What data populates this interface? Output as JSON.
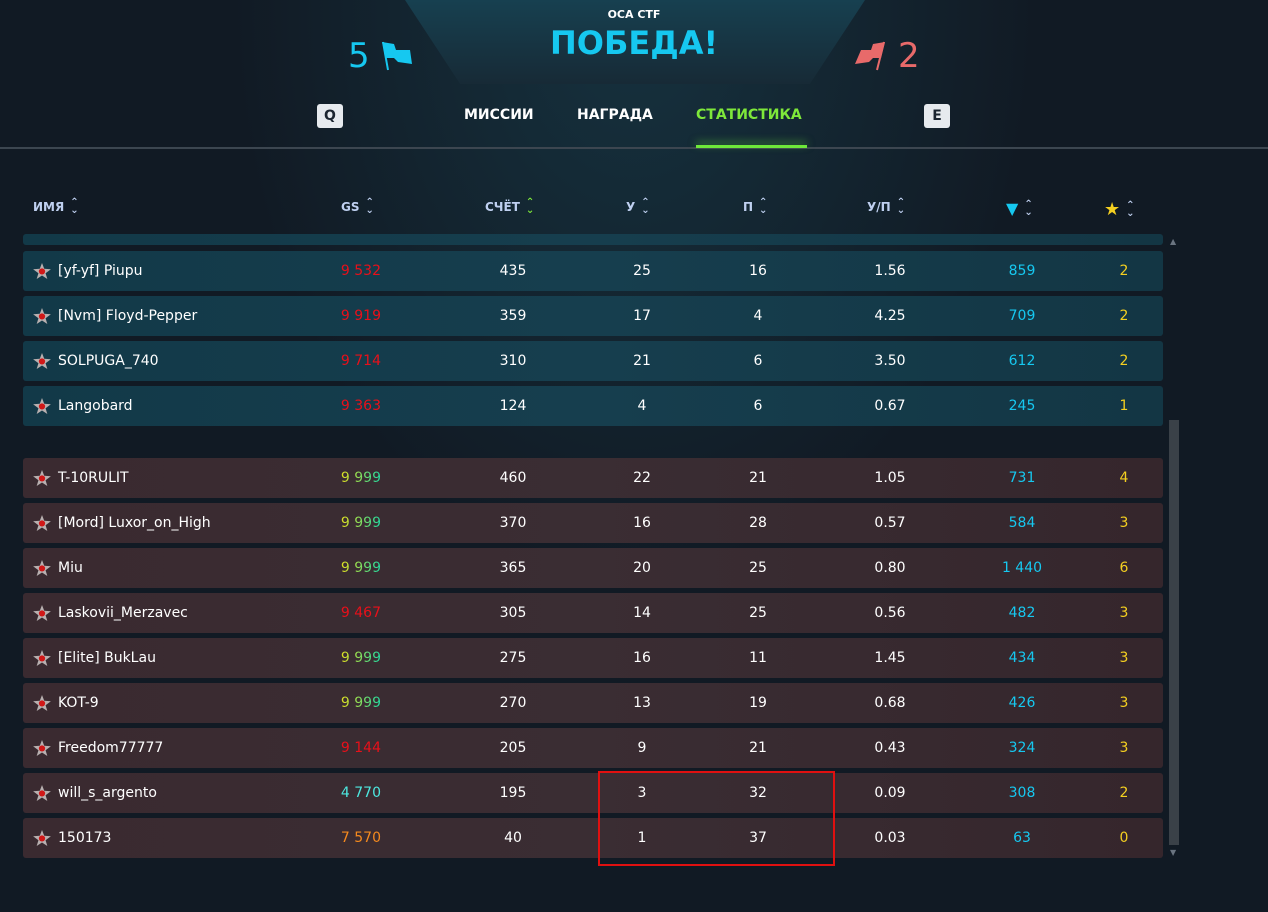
{
  "header": {
    "mode": "ОСА CTF",
    "result": "ПОБЕДА!",
    "blue_score": "5",
    "red_score": "2",
    "key_left": "Q",
    "key_right": "E",
    "tabs": [
      {
        "label": "МИССИИ"
      },
      {
        "label": "НАГРАДА"
      },
      {
        "label": "СТАТИСТИКА",
        "active": true
      }
    ]
  },
  "columns": {
    "name": "ИМЯ",
    "gs": "GS",
    "score": "СЧЁТ",
    "kills": "У",
    "deaths": "П",
    "kd": "У/П",
    "crystals_icon": "diamond-icon",
    "stars_icon": "star-icon"
  },
  "colors": {
    "blue": "#16c8f0",
    "red": "#e86a6a",
    "active_tab": "#7ee83a",
    "gs_low": "#e8101a"
  },
  "blue_team": [
    {
      "name": "[yf-yf] Piupu",
      "gs": "9 532",
      "gs_color": "#e8101a",
      "score": "435",
      "k": "25",
      "d": "16",
      "kd": "1.56",
      "cry": "859",
      "stars": "2"
    },
    {
      "name": "[Nvm] Floyd-Pepper",
      "gs": "9 919",
      "gs_color": "#e8101a",
      "score": "359",
      "k": "17",
      "d": "4",
      "kd": "4.25",
      "cry": "709",
      "stars": "2"
    },
    {
      "name": "SOLPUGA_740",
      "gs": "9 714",
      "gs_color": "#e8101a",
      "score": "310",
      "k": "21",
      "d": "6",
      "kd": "3.50",
      "cry": "612",
      "stars": "2"
    },
    {
      "name": "Langobard",
      "gs": "9 363",
      "gs_color": "#e8101a",
      "score": "124",
      "k": "4",
      "d": "6",
      "kd": "0.67",
      "cry": "245",
      "stars": "1"
    }
  ],
  "red_team": [
    {
      "name": "T-10RULIT",
      "gs": "9 999",
      "gs_color": "green",
      "score": "460",
      "k": "22",
      "d": "21",
      "kd": "1.05",
      "cry": "731",
      "stars": "4"
    },
    {
      "name": "[Mord] Luxor_on_High",
      "gs": "9 999",
      "gs_color": "green",
      "score": "370",
      "k": "16",
      "d": "28",
      "kd": "0.57",
      "cry": "584",
      "stars": "3"
    },
    {
      "name": "Miu",
      "gs": "9 999",
      "gs_color": "green",
      "score": "365",
      "k": "20",
      "d": "25",
      "kd": "0.80",
      "cry": "1 440",
      "stars": "6"
    },
    {
      "name": "Laskovii_Merzavec",
      "gs": "9 467",
      "gs_color": "#e8101a",
      "score": "305",
      "k": "14",
      "d": "25",
      "kd": "0.56",
      "cry": "482",
      "stars": "3"
    },
    {
      "name": "[Elite] BukLau",
      "gs": "9 999",
      "gs_color": "green",
      "score": "275",
      "k": "16",
      "d": "11",
      "kd": "1.45",
      "cry": "434",
      "stars": "3"
    },
    {
      "name": "KOT-9",
      "gs": "9 999",
      "gs_color": "green",
      "score": "270",
      "k": "13",
      "d": "19",
      "kd": "0.68",
      "cry": "426",
      "stars": "3"
    },
    {
      "name": "Freedom77777",
      "gs": "9 144",
      "gs_color": "#e8101a",
      "score": "205",
      "k": "9",
      "d": "21",
      "kd": "0.43",
      "cry": "324",
      "stars": "3"
    },
    {
      "name": "will_s_argento",
      "gs": "4 770",
      "gs_color": "#4de8e0",
      "score": "195",
      "k": "3",
      "d": "32",
      "kd": "0.09",
      "cry": "308",
      "stars": "2"
    },
    {
      "name": "150173",
      "gs": "7 570",
      "gs_color": "#f58a1e",
      "score": "40",
      "k": "1",
      "d": "37",
      "kd": "0.03",
      "cry": "63",
      "stars": "0"
    }
  ]
}
